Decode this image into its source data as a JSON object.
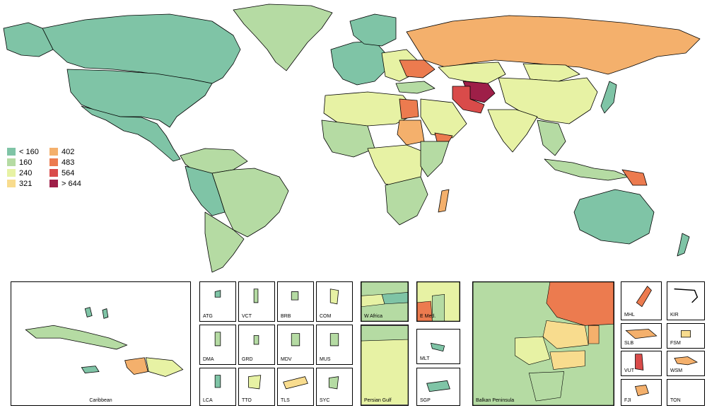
{
  "legend": {
    "items": [
      {
        "label": "< 160",
        "color": "#7fc4a6"
      },
      {
        "label": "160",
        "color": "#b5dba3"
      },
      {
        "label": "240",
        "color": "#e7f2a4"
      },
      {
        "label": "321",
        "color": "#f8dc8e"
      },
      {
        "label": "402",
        "color": "#f4b06c"
      },
      {
        "label": "483",
        "color": "#ec7b4f"
      },
      {
        "label": "564",
        "color": "#d94b4a"
      },
      {
        "label": "> 644",
        "color": "#9e1f48"
      }
    ]
  },
  "insets": {
    "caribbean": "Caribbean",
    "atg": "ATG",
    "vct": "VCT",
    "brb": "BRB",
    "com": "COM",
    "dma": "DMA",
    "grd": "GRD",
    "mdv": "MDV",
    "mus": "MUS",
    "lca": "LCA",
    "tto": "TTO",
    "tls": "TLS",
    "syc": "SYC",
    "w_africa": "W Africa",
    "e_med": "E Med.",
    "persian_gulf": "Persian Gulf",
    "mlt": "MLT",
    "sgp": "SGP",
    "balkan": "Balkan Peninsula",
    "mhl": "MHL",
    "kir": "KIR",
    "slb": "SLB",
    "fsm": "FSM",
    "vut": "VUT",
    "wsm": "WSM",
    "fji": "FJI",
    "ton": "TON"
  }
}
